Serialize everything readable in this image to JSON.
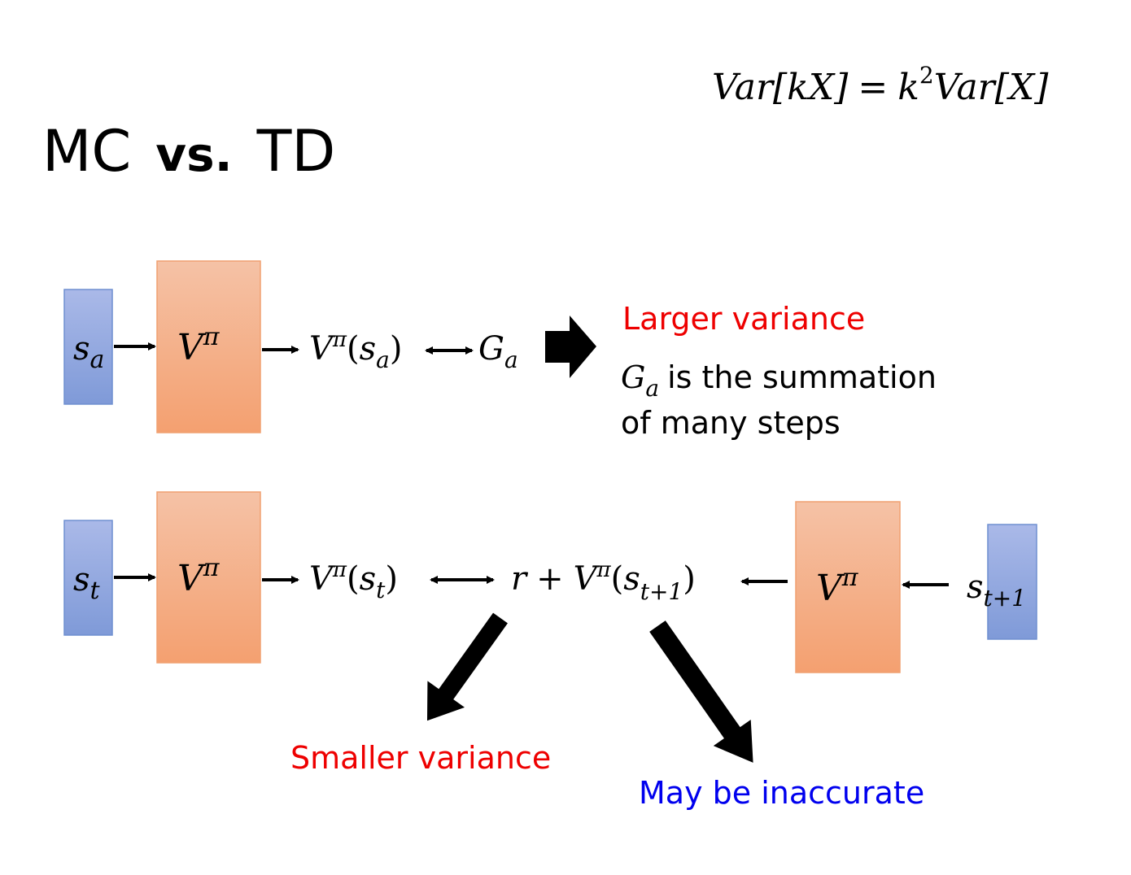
{
  "title": {
    "mc": "MC",
    "vs": "vs.",
    "td": "TD"
  },
  "formula": {
    "lhs": "Var[kX]",
    "eq": "=",
    "k": "k",
    "sq": "2",
    "rhs": "Var[X]"
  },
  "mc_row": {
    "input_state": {
      "s": "s",
      "sub": "a"
    },
    "network": {
      "v": "V",
      "sup": "π"
    },
    "output": {
      "v": "V",
      "sup": "π",
      "open": "(",
      "s": "s",
      "sub": "a",
      "close": ")"
    },
    "target": {
      "g": "G",
      "sub": "a"
    },
    "note_title": "Larger variance",
    "note_line1": "is the summation",
    "note_g": "G",
    "note_g_sub": "a",
    "note_line2": "of many steps"
  },
  "td_row": {
    "input_state": {
      "s": "s",
      "sub": "t"
    },
    "network": {
      "v": "V",
      "sup": "π"
    },
    "output": {
      "v": "V",
      "sup": "π",
      "open": "(",
      "s": "s",
      "sub": "t",
      "close": ")"
    },
    "target": {
      "r": "r",
      "plus": "+",
      "v": "V",
      "sup": "π",
      "open": "(",
      "s": "s",
      "sub": "t+1",
      "close": ")"
    },
    "network2": {
      "v": "V",
      "sup": "π"
    },
    "next_state": {
      "s": "s",
      "sub": "t+1"
    },
    "smaller_label": "Smaller variance",
    "inaccurate_label": "May be inaccurate"
  },
  "colors": {
    "state_box": "#8fa5e0",
    "network_box": "#f5b08a",
    "red": "#ee0000",
    "blue": "#0000ee"
  }
}
